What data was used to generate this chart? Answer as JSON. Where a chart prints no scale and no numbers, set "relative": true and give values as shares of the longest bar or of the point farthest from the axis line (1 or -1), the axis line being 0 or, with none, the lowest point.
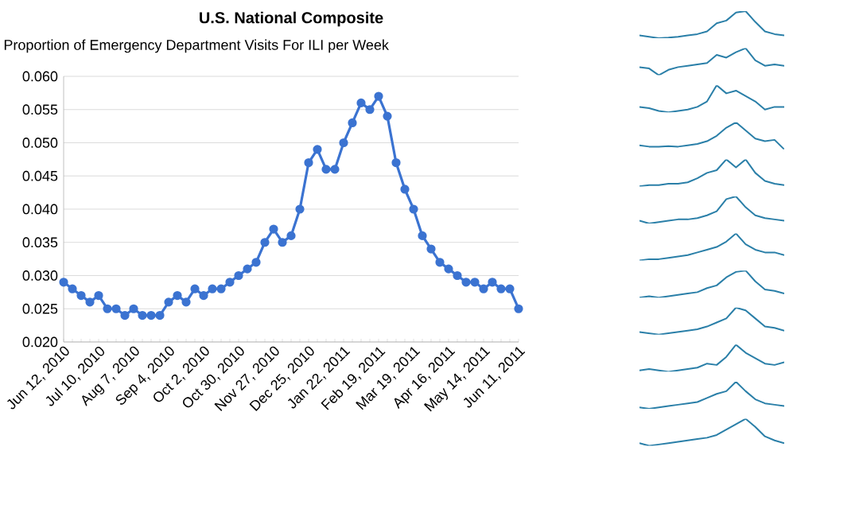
{
  "chart_data": [
    {
      "type": "line",
      "title": "U.S. National Composite",
      "subtitle": "Proportion of Emergency Department Visits For ILI per Week",
      "categories": [
        "Jun 12, 2010",
        null,
        null,
        null,
        "Jul 10, 2010",
        null,
        null,
        null,
        "Aug 7, 2010",
        null,
        null,
        null,
        "Sep 4, 2010",
        null,
        null,
        null,
        "Oct 2, 2010",
        null,
        null,
        null,
        "Oct 30, 2010",
        null,
        null,
        null,
        "Nov 27, 2010",
        null,
        null,
        null,
        "Dec 25, 2010",
        null,
        null,
        null,
        "Jan 22, 2011",
        null,
        null,
        null,
        "Feb 19, 2011",
        null,
        null,
        null,
        "Mar 19, 2011",
        null,
        null,
        null,
        "Apr 16, 2011",
        null,
        null,
        null,
        "May 14, 2011",
        null,
        null,
        null,
        "Jun 11, 2011"
      ],
      "values": [
        0.029,
        0.028,
        0.027,
        0.026,
        0.027,
        0.025,
        0.025,
        0.024,
        0.025,
        0.024,
        0.024,
        0.024,
        0.026,
        0.027,
        0.026,
        0.028,
        0.027,
        0.028,
        0.028,
        0.029,
        0.03,
        0.031,
        0.032,
        0.035,
        0.037,
        0.035,
        0.036,
        0.04,
        0.047,
        0.049,
        0.046,
        0.046,
        0.05,
        0.053,
        0.056,
        0.055,
        0.057,
        0.054,
        0.047,
        0.043,
        0.04,
        0.036,
        0.034,
        0.032,
        0.031,
        0.03,
        0.029,
        0.029,
        0.028,
        0.029,
        0.028,
        0.028,
        0.025
      ],
      "color": "#3b73d1",
      "marker": "circle",
      "grid": "y",
      "ylim": [
        0.02,
        0.06
      ],
      "yticks": [
        {
          "value": 0.02,
          "label": "0.020"
        },
        {
          "value": 0.025,
          "label": "0.025"
        },
        {
          "value": 0.03,
          "label": "0.030"
        },
        {
          "value": 0.035,
          "label": "0.035"
        },
        {
          "value": 0.04,
          "label": "0.040"
        },
        {
          "value": 0.045,
          "label": "0.045"
        },
        {
          "value": 0.05,
          "label": "0.050"
        },
        {
          "value": 0.055,
          "label": "0.055"
        },
        {
          "value": 0.06,
          "label": "0.060"
        }
      ]
    },
    {
      "type": "line",
      "relative": true,
      "color": "#2a7fa8",
      "categories": [
        null,
        null,
        null,
        null,
        null,
        null,
        null,
        null,
        null,
        null,
        null,
        null,
        null,
        null,
        null,
        null
      ],
      "values": [
        0.1,
        0.05,
        0.0,
        0.02,
        0.05,
        0.1,
        0.15,
        0.25,
        0.55,
        0.65,
        0.95,
        1.0,
        0.6,
        0.25,
        0.15,
        0.1
      ]
    },
    {
      "type": "line",
      "relative": true,
      "color": "#2a7fa8",
      "categories": [
        null,
        null,
        null,
        null,
        null,
        null,
        null,
        null,
        null,
        null,
        null,
        null,
        null,
        null,
        null,
        null
      ],
      "values": [
        0.3,
        0.25,
        0.0,
        0.2,
        0.3,
        0.35,
        0.4,
        0.45,
        0.75,
        0.65,
        0.85,
        1.0,
        0.55,
        0.35,
        0.4,
        0.35
      ]
    },
    {
      "type": "line",
      "relative": true,
      "color": "#2a7fa8",
      "categories": [
        null,
        null,
        null,
        null,
        null,
        null,
        null,
        null,
        null,
        null,
        null,
        null,
        null,
        null,
        null,
        null
      ],
      "values": [
        0.2,
        0.15,
        0.05,
        0.0,
        0.05,
        0.1,
        0.2,
        0.4,
        1.0,
        0.7,
        0.8,
        0.6,
        0.4,
        0.1,
        0.2,
        0.2
      ]
    },
    {
      "type": "line",
      "relative": true,
      "color": "#2a7fa8",
      "categories": [
        null,
        null,
        null,
        null,
        null,
        null,
        null,
        null,
        null,
        null,
        null,
        null,
        null,
        null,
        null,
        null
      ],
      "values": [
        0.15,
        0.1,
        0.1,
        0.12,
        0.1,
        0.15,
        0.2,
        0.3,
        0.5,
        0.8,
        1.0,
        0.7,
        0.4,
        0.3,
        0.35,
        0.0
      ]
    },
    {
      "type": "line",
      "relative": true,
      "color": "#2a7fa8",
      "categories": [
        null,
        null,
        null,
        null,
        null,
        null,
        null,
        null,
        null,
        null,
        null,
        null,
        null,
        null,
        null,
        null
      ],
      "values": [
        0.0,
        0.05,
        0.05,
        0.1,
        0.1,
        0.15,
        0.3,
        0.5,
        0.6,
        1.0,
        0.7,
        1.0,
        0.5,
        0.2,
        0.1,
        0.05
      ]
    },
    {
      "type": "line",
      "relative": true,
      "color": "#2a7fa8",
      "categories": [
        null,
        null,
        null,
        null,
        null,
        null,
        null,
        null,
        null,
        null,
        null,
        null,
        null,
        null,
        null,
        null
      ],
      "values": [
        0.1,
        0.0,
        0.05,
        0.1,
        0.15,
        0.15,
        0.2,
        0.3,
        0.45,
        0.9,
        1.0,
        0.6,
        0.3,
        0.2,
        0.15,
        0.1
      ]
    },
    {
      "type": "line",
      "relative": true,
      "color": "#2a7fa8",
      "categories": [
        null,
        null,
        null,
        null,
        null,
        null,
        null,
        null,
        null,
        null,
        null,
        null,
        null,
        null,
        null,
        null
      ],
      "values": [
        0.0,
        0.05,
        0.05,
        0.1,
        0.15,
        0.2,
        0.3,
        0.4,
        0.5,
        0.7,
        1.0,
        0.6,
        0.4,
        0.3,
        0.3,
        0.2
      ]
    },
    {
      "type": "line",
      "relative": true,
      "color": "#2a7fa8",
      "categories": [
        null,
        null,
        null,
        null,
        null,
        null,
        null,
        null,
        null,
        null,
        null,
        null,
        null,
        null,
        null,
        null
      ],
      "values": [
        0.0,
        0.05,
        0.0,
        0.05,
        0.1,
        0.15,
        0.2,
        0.35,
        0.45,
        0.75,
        0.95,
        1.0,
        0.6,
        0.3,
        0.25,
        0.15
      ]
    },
    {
      "type": "line",
      "relative": true,
      "color": "#2a7fa8",
      "categories": [
        null,
        null,
        null,
        null,
        null,
        null,
        null,
        null,
        null,
        null,
        null,
        null,
        null,
        null,
        null,
        null
      ],
      "values": [
        0.1,
        0.05,
        0.0,
        0.05,
        0.1,
        0.15,
        0.2,
        0.3,
        0.45,
        0.6,
        1.0,
        0.9,
        0.6,
        0.3,
        0.25,
        0.15
      ]
    },
    {
      "type": "line",
      "relative": true,
      "color": "#2a7fa8",
      "categories": [
        null,
        null,
        null,
        null,
        null,
        null,
        null,
        null,
        null,
        null,
        null,
        null,
        null,
        null,
        null,
        null
      ],
      "values": [
        0.05,
        0.1,
        0.05,
        0.0,
        0.05,
        0.1,
        0.15,
        0.3,
        0.25,
        0.55,
        1.0,
        0.7,
        0.5,
        0.3,
        0.25,
        0.35
      ]
    },
    {
      "type": "line",
      "relative": true,
      "color": "#2a7fa8",
      "categories": [
        null,
        null,
        null,
        null,
        null,
        null,
        null,
        null,
        null,
        null,
        null,
        null,
        null,
        null,
        null,
        null
      ],
      "values": [
        0.05,
        0.0,
        0.05,
        0.1,
        0.15,
        0.2,
        0.25,
        0.4,
        0.55,
        0.65,
        1.0,
        0.65,
        0.35,
        0.2,
        0.15,
        0.1
      ]
    },
    {
      "type": "line",
      "relative": true,
      "color": "#2a7fa8",
      "categories": [
        null,
        null,
        null,
        null,
        null,
        null,
        null,
        null,
        null,
        null,
        null,
        null,
        null,
        null,
        null,
        null
      ],
      "values": [
        0.1,
        0.0,
        0.05,
        0.1,
        0.15,
        0.2,
        0.25,
        0.3,
        0.4,
        0.6,
        0.8,
        1.0,
        0.7,
        0.35,
        0.2,
        0.1
      ]
    }
  ]
}
